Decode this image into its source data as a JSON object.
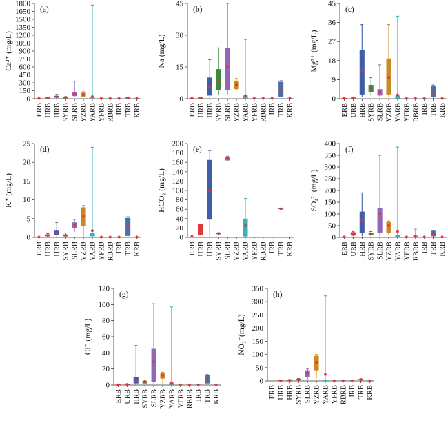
{
  "colors": {
    "ERB": "#e23a3a",
    "URB": "#e23a3a",
    "HRB": "#3f5ea8",
    "SYRB": "#3f8a3f",
    "SLRB": "#9168b8",
    "YZRB": "#c98a22",
    "YARB": "#3ab0b0",
    "YFRB": "#9c9c9c",
    "RBRB": "#9c9c9c",
    "IRB": "#9c9c9c",
    "TRB": "#4d6fa8",
    "KRB": "#9c9c9c",
    "mean": "#e8303a"
  },
  "chart_data": [
    {
      "type": "box",
      "panel": "(a)",
      "ylabel": "Ca²⁺ (mg/L)",
      "ylim": [
        0,
        1800
      ],
      "yticks": [
        0,
        150,
        300,
        450,
        600,
        750,
        900,
        1050,
        1200,
        1350,
        1500,
        1650,
        1800
      ],
      "categories": [
        "ERB",
        "URB",
        "HRB",
        "SYRB",
        "SLRB",
        "YZRB",
        "YARB",
        "YFRB",
        "RBRB",
        "IRB",
        "TRB",
        "KRB"
      ],
      "boxes": [
        {
          "min": 0,
          "q1": 0,
          "q3": 0,
          "max": 0,
          "mean": 5
        },
        {
          "min": 5,
          "q1": 10,
          "q3": 22,
          "max": 25,
          "mean": 18
        },
        {
          "min": 10,
          "q1": 20,
          "q3": 55,
          "max": 80,
          "mean": 35
        },
        {
          "min": 5,
          "q1": 10,
          "q3": 30,
          "max": 40,
          "mean": 20
        },
        {
          "min": 30,
          "q1": 50,
          "q3": 120,
          "max": 330,
          "mean": 90
        },
        {
          "min": 30,
          "q1": 40,
          "q3": 115,
          "max": 130,
          "mean": 75
        },
        {
          "min": 5,
          "q1": 10,
          "q3": 25,
          "max": 1770,
          "mean": 40
        },
        {
          "min": 0,
          "q1": 0,
          "q3": 0,
          "max": 0,
          "mean": 5
        },
        {
          "min": 0,
          "q1": 0,
          "q3": 0,
          "max": 0,
          "mean": 5
        },
        {
          "min": 0,
          "q1": 0,
          "q3": 0,
          "max": 0,
          "mean": 5
        },
        {
          "min": 5,
          "q1": 10,
          "q3": 20,
          "max": 25,
          "mean": 15
        },
        {
          "min": 0,
          "q1": 0,
          "q3": 0,
          "max": 0,
          "mean": 5
        }
      ]
    },
    {
      "type": "box",
      "panel": "(b)",
      "ylabel": "Na (mg/L)",
      "ylim": [
        0,
        45
      ],
      "yticks": [
        0,
        15,
        30,
        45
      ],
      "categories": [
        "ERB",
        "URB",
        "HRB",
        "SYRB",
        "SLRB",
        "YZRB",
        "YARB",
        "YFRB",
        "RBRB",
        "IRB",
        "TRB",
        "KRB"
      ],
      "boxes": [
        {
          "min": 0,
          "q1": 0,
          "q3": 0,
          "max": 0,
          "mean": 0.2
        },
        {
          "min": 0,
          "q1": 0.2,
          "q3": 0.6,
          "max": 0.8,
          "mean": 0.4
        },
        {
          "min": 0.5,
          "q1": 1.5,
          "q3": 10.0,
          "max": 18.5,
          "mean": 5.5
        },
        {
          "min": 2,
          "q1": 4,
          "q3": 14,
          "max": 24,
          "mean": 8.5
        },
        {
          "min": 2,
          "q1": 4,
          "q3": 24,
          "max": 45,
          "mean": 15
        },
        {
          "min": 4,
          "q1": 4.5,
          "q3": 8.5,
          "max": 9.5,
          "mean": 6.5
        },
        {
          "min": 0,
          "q1": 0.2,
          "q3": 1.5,
          "max": 28,
          "mean": 1.5
        },
        {
          "min": 0,
          "q1": 0,
          "q3": 0,
          "max": 0,
          "mean": 0.2
        },
        {
          "min": 0,
          "q1": 0,
          "q3": 0,
          "max": 0,
          "mean": 0.2
        },
        {
          "min": 0,
          "q1": 0,
          "q3": 0,
          "max": 0,
          "mean": 0.2
        },
        {
          "min": 0,
          "q1": 1,
          "q3": 8,
          "max": 8.5,
          "mean": 4
        },
        {
          "min": 0,
          "q1": 0,
          "q3": 0,
          "max": 0,
          "mean": 0.2
        }
      ]
    },
    {
      "type": "box",
      "panel": "(c)",
      "ylabel": "Mg²⁺ (mg/L)",
      "ylim": [
        0,
        45
      ],
      "yticks": [
        0,
        9,
        18,
        27,
        36,
        45
      ],
      "categories": [
        "ERB",
        "URB",
        "HRB",
        "SYRB",
        "SLRB",
        "YZRB",
        "YARB",
        "YFRB",
        "RBRB",
        "IRB",
        "TRB",
        "KRB"
      ],
      "boxes": [
        {
          "min": 0,
          "q1": 0,
          "q3": 0,
          "max": 0,
          "mean": 0.2
        },
        {
          "min": 0,
          "q1": 0.2,
          "q3": 0.5,
          "max": 0.8,
          "mean": 0.4
        },
        {
          "min": 1,
          "q1": 2,
          "q3": 23,
          "max": 35,
          "mean": 13.5
        },
        {
          "min": 1.5,
          "q1": 3,
          "q3": 6.5,
          "max": 10,
          "mean": 5
        },
        {
          "min": 1,
          "q1": 1.5,
          "q3": 4.5,
          "max": 16,
          "mean": 3
        },
        {
          "min": 1,
          "q1": 2,
          "q3": 19,
          "max": 35,
          "mean": 10
        },
        {
          "min": 0,
          "q1": 0.2,
          "q3": 1.5,
          "max": 39,
          "mean": 1.8
        },
        {
          "min": 0,
          "q1": 0,
          "q3": 0,
          "max": 0,
          "mean": 0.1
        },
        {
          "min": 0,
          "q1": 0,
          "q3": 0,
          "max": 0,
          "mean": 0.1
        },
        {
          "min": 0,
          "q1": 0,
          "q3": 0,
          "max": 0,
          "mean": 0.1
        },
        {
          "min": 0,
          "q1": 1,
          "q3": 6,
          "max": 6.5,
          "mean": 3
        },
        {
          "min": 0,
          "q1": 0,
          "q3": 0,
          "max": 0,
          "mean": 0.1
        }
      ]
    },
    {
      "type": "box",
      "panel": "(d)",
      "ylabel": "K⁺ (mg/L)",
      "ylim": [
        0,
        25
      ],
      "yticks": [
        0,
        5,
        10,
        15,
        20,
        25
      ],
      "categories": [
        "ERB",
        "URB",
        "HRB",
        "SYRB",
        "SLRB",
        "YZRB",
        "YARB",
        "YFRB",
        "RBRB",
        "IRB",
        "TRB",
        "KRB"
      ],
      "boxes": [
        {
          "min": 0,
          "q1": 0,
          "q3": 0,
          "max": 0,
          "mean": 0.1
        },
        {
          "min": 0.1,
          "q1": 0.3,
          "q3": 0.8,
          "max": 1,
          "mean": 0.5
        },
        {
          "min": 0.3,
          "q1": 0.6,
          "q3": 1.8,
          "max": 4,
          "mean": 1.1
        },
        {
          "min": 0.2,
          "q1": 0.3,
          "q3": 0.8,
          "max": 1.2,
          "mean": 0.5
        },
        {
          "min": 1.5,
          "q1": 2.4,
          "q3": 4.0,
          "max": 4.8,
          "mean": 3.2
        },
        {
          "min": 0.3,
          "q1": 3,
          "q3": 8,
          "max": 8.5,
          "mean": 5.6
        },
        {
          "min": 0.2,
          "q1": 0.3,
          "q3": 1.2,
          "max": 24,
          "mean": 1.8
        },
        {
          "min": 0,
          "q1": 0,
          "q3": 0,
          "max": 0,
          "mean": 0.1
        },
        {
          "min": 0,
          "q1": 0,
          "q3": 0,
          "max": 0,
          "mean": 0.1
        },
        {
          "min": 0,
          "q1": 0,
          "q3": 0,
          "max": 0,
          "mean": 0.1
        },
        {
          "min": 0.2,
          "q1": 0.4,
          "q3": 5.2,
          "max": 5.5,
          "mean": 2.7
        },
        {
          "min": 0,
          "q1": 0,
          "q3": 0,
          "max": 0,
          "mean": 0.1
        }
      ]
    },
    {
      "type": "box",
      "panel": "(e)",
      "ylabel": "HCO₃ (mg/L)",
      "ylim": [
        0,
        200
      ],
      "yticks": [
        0,
        20,
        40,
        60,
        80,
        100,
        120,
        140,
        160,
        180,
        200
      ],
      "categories": [
        "ERB",
        "URB",
        "HRB",
        "SYRB",
        "SLRB",
        "YZRB",
        "YARB",
        "YFRB",
        "RBRB",
        "IRB",
        "TRB",
        "KRB"
      ],
      "boxes": [
        {
          "min": 0,
          "q1": 0,
          "q3": 0,
          "max": 0,
          "mean": 2
        },
        {
          "min": 2,
          "q1": 5,
          "q3": 28,
          "max": 28,
          "mean": 15
        },
        {
          "min": 2,
          "q1": 38,
          "q3": 165,
          "max": 185,
          "mean": 99
        },
        {
          "min": 5,
          "q1": 7,
          "q3": 10,
          "max": 10,
          "mean": 8
        },
        {
          "min": 163,
          "q1": 164,
          "q3": 172,
          "max": 173,
          "mean": 168
        },
        null,
        {
          "min": 0,
          "q1": 2,
          "q3": 40,
          "max": 83,
          "mean": 25
        },
        null,
        null,
        null,
        {
          "min": 59,
          "q1": 60,
          "q3": 62,
          "max": 62,
          "mean": 61
        },
        null
      ]
    },
    {
      "type": "box",
      "panel": "(f)",
      "ylabel": "SO₄²⁻(mg/L)",
      "ylim": [
        0,
        400
      ],
      "yticks": [
        0,
        50,
        100,
        150,
        200,
        250,
        300,
        350,
        400
      ],
      "categories": [
        "ERB",
        "URB",
        "HRB",
        "SYRB",
        "SLRB",
        "YZRB",
        "YARB",
        "YFRB",
        "RBRB",
        "IRB",
        "TRB",
        "KRB"
      ],
      "boxes": [
        {
          "min": 0,
          "q1": 0,
          "q3": 0,
          "max": 0,
          "mean": 2
        },
        {
          "min": 5,
          "q1": 8,
          "q3": 22,
          "max": 25,
          "mean": 15
        },
        {
          "min": 5,
          "q1": 20,
          "q3": 110,
          "max": 190,
          "mean": 70
        },
        {
          "min": 5,
          "q1": 10,
          "q3": 20,
          "max": 25,
          "mean": 15
        },
        {
          "min": 5,
          "q1": 20,
          "q3": 125,
          "max": 350,
          "mean": 100
        },
        {
          "min": 10,
          "q1": 20,
          "q3": 65,
          "max": 70,
          "mean": 50
        },
        {
          "min": 0,
          "q1": 2,
          "q3": 10,
          "max": 385,
          "mean": 25
        },
        {
          "min": 0,
          "q1": 0,
          "q3": 0,
          "max": 0,
          "mean": 2
        },
        {
          "min": 0,
          "q1": 2,
          "q3": 8,
          "max": 35,
          "mean": 5
        },
        {
          "min": 0,
          "q1": 0,
          "q3": 0,
          "max": 0,
          "mean": 2
        },
        {
          "min": 0,
          "q1": 5,
          "q3": 28,
          "max": 30,
          "mean": 15
        },
        {
          "min": 0,
          "q1": 0,
          "q3": 0,
          "max": 0,
          "mean": 2
        }
      ]
    },
    {
      "type": "box",
      "panel": "(g)",
      "ylabel": "Cl⁻ (mg/L)",
      "ylim": [
        0,
        120
      ],
      "yticks": [
        0,
        20,
        40,
        60,
        80,
        100,
        120
      ],
      "categories": [
        "ERB",
        "URB",
        "HRB",
        "SYRB",
        "SLRB",
        "YZRB",
        "YARB",
        "YFRB",
        "RBRB",
        "IRB",
        "TRB",
        "KRB"
      ],
      "boxes": [
        {
          "min": 0,
          "q1": 0,
          "q3": 0,
          "max": 0,
          "mean": 0.3
        },
        {
          "min": 0,
          "q1": 0.3,
          "q3": 1,
          "max": 1.5,
          "mean": 0.7
        },
        {
          "min": 0.5,
          "q1": 2,
          "q3": 10,
          "max": 49,
          "mean": 5
        },
        {
          "min": 1,
          "q1": 2,
          "q3": 5,
          "max": 6,
          "mean": 4
        },
        {
          "min": 2,
          "q1": 4,
          "q3": 45,
          "max": 101,
          "mean": 29
        },
        {
          "min": 2,
          "q1": 8,
          "q3": 15,
          "max": 16,
          "mean": 12
        },
        {
          "min": 0,
          "q1": 0.5,
          "q3": 3,
          "max": 97,
          "mean": 3
        },
        {
          "min": 0,
          "q1": 0,
          "q3": 0,
          "max": 0,
          "mean": 0.3
        },
        {
          "min": 0,
          "q1": 0,
          "q3": 0,
          "max": 0,
          "mean": 0.3
        },
        {
          "min": 0,
          "q1": 0,
          "q3": 0,
          "max": 0,
          "mean": 0.3
        },
        {
          "min": 0.5,
          "q1": 2,
          "q3": 12,
          "max": 13,
          "mean": 7
        },
        {
          "min": 0,
          "q1": 0,
          "q3": 0,
          "max": 0,
          "mean": 0.3
        }
      ]
    },
    {
      "type": "box",
      "panel": "(h)",
      "ylabel": "NO₃⁻(mg/L)",
      "ylim": [
        0,
        350
      ],
      "yticks": [
        0,
        50,
        100,
        150,
        200,
        250,
        300,
        350
      ],
      "categories": [
        "ERB",
        "URB",
        "HRB",
        "SYRB",
        "SLRB",
        "YZRB",
        "YARB",
        "YFRB",
        "RBRB",
        "IRB",
        "TRB",
        "KRB"
      ],
      "boxes": [
        null,
        {
          "min": 0,
          "q1": 0.5,
          "q3": 2,
          "max": 3,
          "mean": 1
        },
        {
          "min": 0,
          "q1": 1,
          "q3": 4,
          "max": 5,
          "mean": 2
        },
        {
          "min": 1,
          "q1": 3,
          "q3": 8,
          "max": 9,
          "mean": 5
        },
        {
          "min": 5,
          "q1": 15,
          "q3": 40,
          "max": 45,
          "mean": 30
        },
        {
          "min": 10,
          "q1": 40,
          "q3": 95,
          "max": 100,
          "mean": 70
        },
        {
          "min": 0,
          "q1": 0,
          "q3": 3,
          "max": 322,
          "mean": 24
        },
        {
          "min": 0,
          "q1": 0.5,
          "q3": 2,
          "max": 3,
          "mean": 1
        },
        {
          "min": 0,
          "q1": 0.5,
          "q3": 1.5,
          "max": 2,
          "mean": 1
        },
        {
          "min": 0,
          "q1": 0.5,
          "q3": 2,
          "max": 3,
          "mean": 1
        },
        {
          "min": 1,
          "q1": 3,
          "q3": 7,
          "max": 8,
          "mean": 5
        },
        {
          "min": 0,
          "q1": 0.5,
          "q3": 1.5,
          "max": 2,
          "mean": 1
        }
      ]
    }
  ]
}
